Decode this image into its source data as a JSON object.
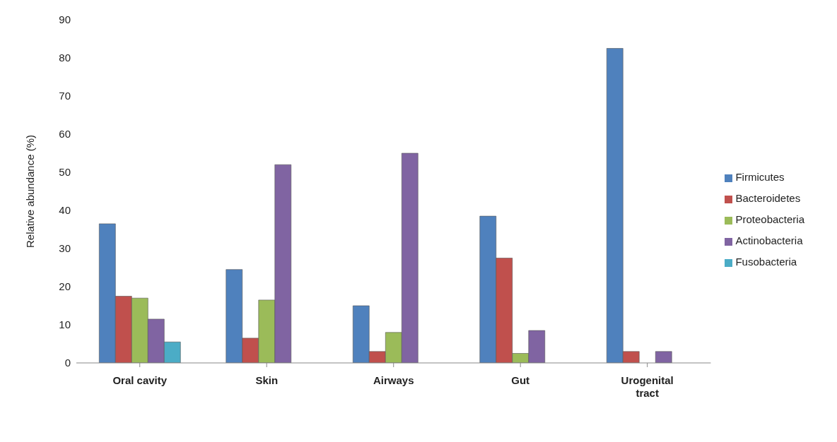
{
  "chart_data": {
    "type": "bar",
    "ylabel": "Relative abundance (%)",
    "categories": [
      "Oral cavity",
      "Skin",
      "Airways",
      "Gut",
      "Urogenital tract"
    ],
    "series": [
      {
        "name": "Firmicutes",
        "color": "#4f81bd",
        "values": [
          36.5,
          24.5,
          15,
          38.5,
          82.5
        ]
      },
      {
        "name": "Bacteroidetes",
        "color": "#c0504d",
        "values": [
          17.5,
          6.5,
          3,
          27.5,
          3
        ]
      },
      {
        "name": "Proteobacteria",
        "color": "#9bbb59",
        "values": [
          17,
          16.5,
          8,
          2.5,
          null
        ]
      },
      {
        "name": "Actinobacteria",
        "color": "#8064a2",
        "values": [
          11.5,
          52,
          55,
          8.5,
          3
        ]
      },
      {
        "name": "Fusobacteria",
        "color": "#4bacc6",
        "values": [
          5.5,
          null,
          null,
          null,
          null
        ]
      }
    ],
    "ylim": [
      0,
      90
    ],
    "yticks": [
      0,
      10,
      20,
      30,
      40,
      50,
      60,
      70,
      80,
      90
    ],
    "grid": false,
    "legend": "right"
  }
}
